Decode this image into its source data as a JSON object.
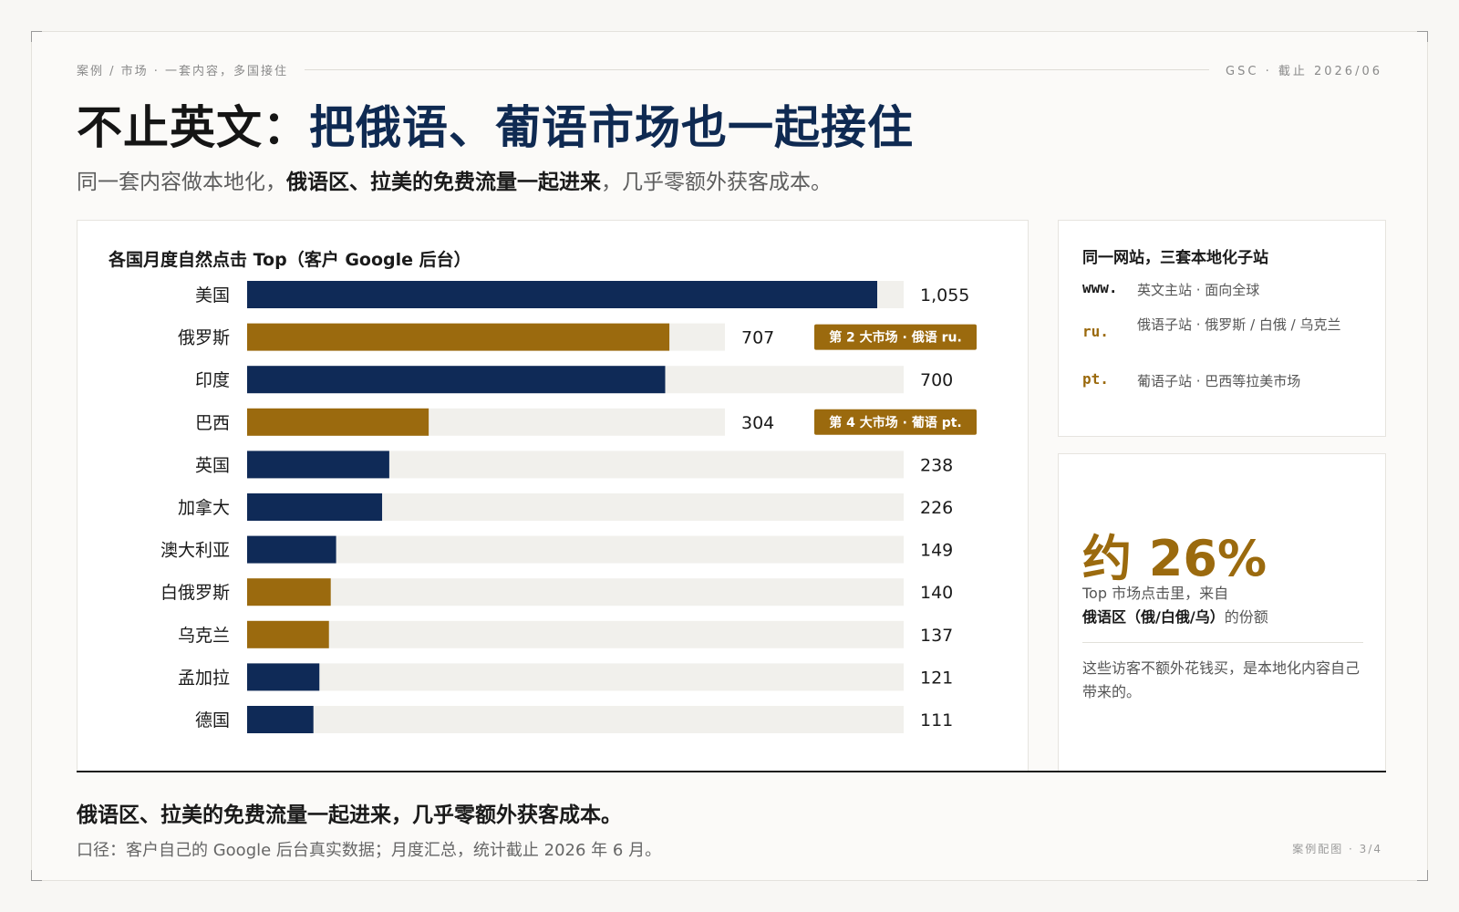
{
  "header": {
    "breadcrumb": "案例 / 市场 · 一套内容，多国接住",
    "meta": "GSC · 截止 2026/06"
  },
  "title": {
    "part1": "不止英文：",
    "part2": "把俄语、葡语市场也一起接住"
  },
  "subtitle": {
    "part1": "同一套内容做本地化，",
    "part2": "俄语区、拉美的免费流量一起进来",
    "part3": "，几乎零额外获客成本。"
  },
  "chart_data": {
    "type": "bar",
    "orientation": "horizontal",
    "title": "各国月度自然点击 Top（客户 Google 后台）",
    "xlim": [
      0,
      1100
    ],
    "categories": [
      "美国",
      "俄罗斯",
      "印度",
      "巴西",
      "英国",
      "加拿大",
      "澳大利亚",
      "白俄罗斯",
      "乌克兰",
      "孟加拉",
      "德国"
    ],
    "values": [
      1055,
      707,
      700,
      304,
      238,
      226,
      149,
      140,
      137,
      121,
      111
    ],
    "value_labels": [
      "1,055",
      "707",
      "700",
      "304",
      "238",
      "226",
      "149",
      "140",
      "137",
      "121",
      "111"
    ],
    "highlight": [
      false,
      true,
      false,
      true,
      false,
      false,
      false,
      true,
      true,
      false,
      false
    ],
    "annotations": [
      "",
      "第 2 大市场 · 俄语 ru.",
      "",
      "第 4 大市场 · 葡语 pt.",
      "",
      "",
      "",
      "",
      "",
      "",
      ""
    ],
    "colors": {
      "default": "#0f2a57",
      "highlight": "#9b6a0e",
      "track": "#f1f0ec",
      "badge_text": "#ffffff"
    },
    "grid": false,
    "legend": "none"
  },
  "sites": {
    "title": "同一网站，三套本地化子站",
    "items": [
      {
        "code": "www.",
        "desc": "英文主站 · 面向全球",
        "color": "#1a1a1a"
      },
      {
        "code": "ru.",
        "desc": "俄语子站 · 俄罗斯 / 白俄 / 乌克兰",
        "color": "#9b6a0e"
      },
      {
        "code": "pt.",
        "desc": "葡语子站 · 巴西等拉美市场",
        "color": "#9b6a0e"
      }
    ]
  },
  "share": {
    "value": "约 26%",
    "caption_a": "Top 市场点击里，来自",
    "caption_b": "俄语区（俄/白俄/乌）",
    "caption_c": "的份额",
    "note": "这些访客不额外花钱买，是本地化内容自己带来的。"
  },
  "footer": {
    "conclusion": "俄语区、拉美的免费流量一起进来，几乎零额外获客成本。",
    "source": "口径：客户自己的 Google 后台真实数据；月度汇总，统计截止 2026 年 6 月。",
    "page": "案例配图 · 3/4"
  }
}
